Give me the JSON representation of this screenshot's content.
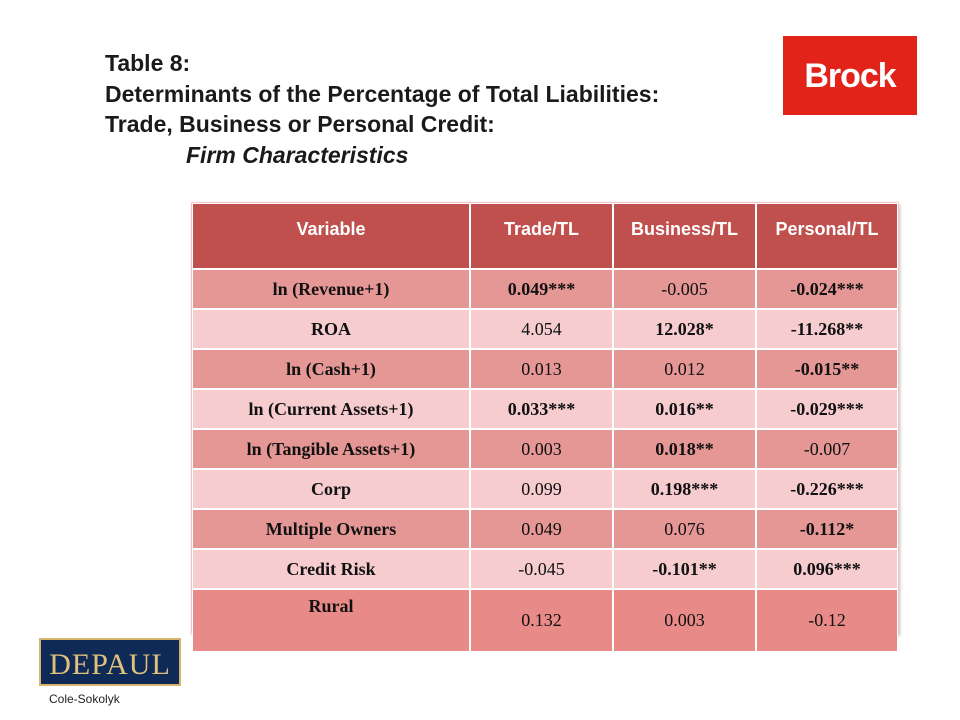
{
  "title": {
    "line1": "Table 8:",
    "line2": "Determinants of the Percentage of Total Liabilities:",
    "line3": "Trade, Business or Personal Credit:",
    "line4": "Firm Characteristics"
  },
  "logos": {
    "brock": "Brock",
    "depaul": "DEPAUL"
  },
  "table": {
    "headers": [
      "Variable",
      "Trade/TL",
      "Business/TL",
      "Personal/TL"
    ],
    "rows": [
      {
        "cells": [
          "ln (Revenue+1)",
          "0.049***",
          "-0.005",
          "-0.024***"
        ]
      },
      {
        "cells": [
          "ROA",
          "4.054",
          "12.028*",
          "-11.268**"
        ]
      },
      {
        "cells": [
          "ln (Cash+1)",
          "0.013",
          "0.012",
          "-0.015**"
        ]
      },
      {
        "cells": [
          "ln (Current Assets+1)",
          "0.033***",
          "0.016**",
          "-0.029***"
        ]
      },
      {
        "cells": [
          "ln (Tangible Assets+1)",
          "0.003",
          "0.018**",
          "-0.007"
        ]
      },
      {
        "cells": [
          "Corp",
          "0.099",
          "0.198***",
          "-0.226***"
        ]
      },
      {
        "cells": [
          "Multiple Owners",
          "0.049",
          "0.076",
          "-0.112*"
        ]
      },
      {
        "cells": [
          "Credit Risk",
          "-0.045",
          "-0.101**",
          "0.096***"
        ]
      },
      {
        "cells": [
          "Rural",
          "0.132",
          "0.003",
          "-0.12"
        ]
      }
    ]
  },
  "footer": "Cole-Sokolyk",
  "colors": {
    "header": "#c0504d",
    "row_dark": "#e49795",
    "row_light": "#f6cccf",
    "brock_red": "#e2231a",
    "depaul_navy": "#0f2a57"
  }
}
